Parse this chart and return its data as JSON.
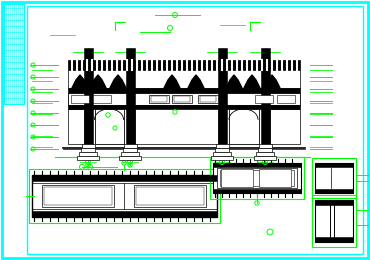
{
  "bg_color": "#ffffff",
  "cyan": "#00ffff",
  "black": "#000000",
  "green": "#00ff00",
  "figsize": [
    3.7,
    2.6
  ],
  "dpi": 100
}
